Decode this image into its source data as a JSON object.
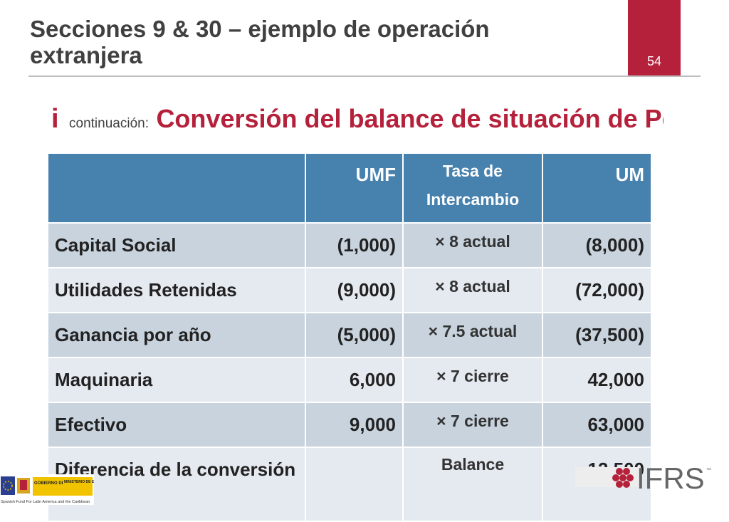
{
  "slide": {
    "title": "Secciones 9 & 30 – ejemplo de operación extranjera",
    "page_number": "54",
    "subtitle_bullet": "i",
    "subtitle_small": "continuación:",
    "subtitle_main": "Conversión del balance de situación de Pe"
  },
  "table": {
    "headers": [
      "",
      "UMF",
      "Tasa de Intercambio",
      "UM"
    ],
    "rows": [
      {
        "label": "Capital Social",
        "umf": "(1,000)",
        "rate": "× 8 actual",
        "um": "(8,000)"
      },
      {
        "label": "Utilidades Retenidas",
        "umf": "(9,000)",
        "rate": "× 8 actual",
        "um": "(72,000)"
      },
      {
        "label": "Ganancia por año",
        "umf": "(5,000)",
        "rate": "× 7.5 actual",
        "um": "(37,500)"
      },
      {
        "label": "Maquinaria",
        "umf": "6,000",
        "rate": "× 7 cierre",
        "um": "42,000"
      },
      {
        "label": "Efectivo",
        "umf": "9,000",
        "rate": "× 7 cierre",
        "um": "63,000"
      },
      {
        "label": "Diferencia de la conversión",
        "umf": "",
        "rate": "Balance",
        "um": "12,500"
      }
    ]
  },
  "footer": {
    "gov_line1": "GOBIERNO DE ESPAÑA",
    "gov_line2": "MINISTERIO DE ECONOMÍA Y HACIENDA",
    "fund_text": "Spanish Fund For Latin America and the Caribbean",
    "ifrs_logo": "IFRS",
    "colors": {
      "accent": "#b5213b",
      "header_blue": "#4781ae",
      "row_dark": "#c8d3de",
      "row_light": "#e5eaf0"
    }
  }
}
